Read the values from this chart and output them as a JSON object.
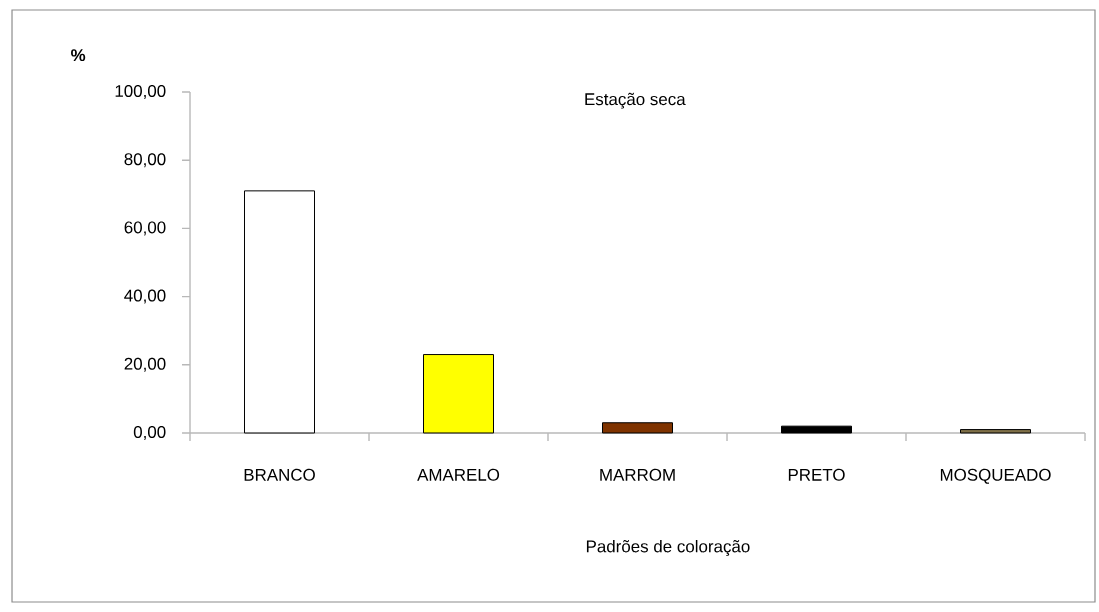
{
  "chart_data": {
    "type": "bar",
    "title": "Estação seca",
    "xlabel": "Padrões de coloração",
    "ylabel": "%",
    "categories": [
      "BRANCO",
      "AMARELO",
      "MARROM",
      "PRETO",
      "MOSQUEADO"
    ],
    "values": [
      71,
      23,
      3,
      2,
      1
    ],
    "colors": [
      "#ffffff",
      "#ffff00",
      "#7f3300",
      "#000000",
      "#7f7048"
    ],
    "ylim": [
      0,
      100
    ],
    "yticks": [
      {
        "value": 0,
        "label": "0,00"
      },
      {
        "value": 20,
        "label": "20,00"
      },
      {
        "value": 40,
        "label": "40,00"
      },
      {
        "value": 60,
        "label": "60,00"
      },
      {
        "value": 80,
        "label": "80,00"
      },
      {
        "value": 100,
        "label": "100,00"
      }
    ]
  }
}
